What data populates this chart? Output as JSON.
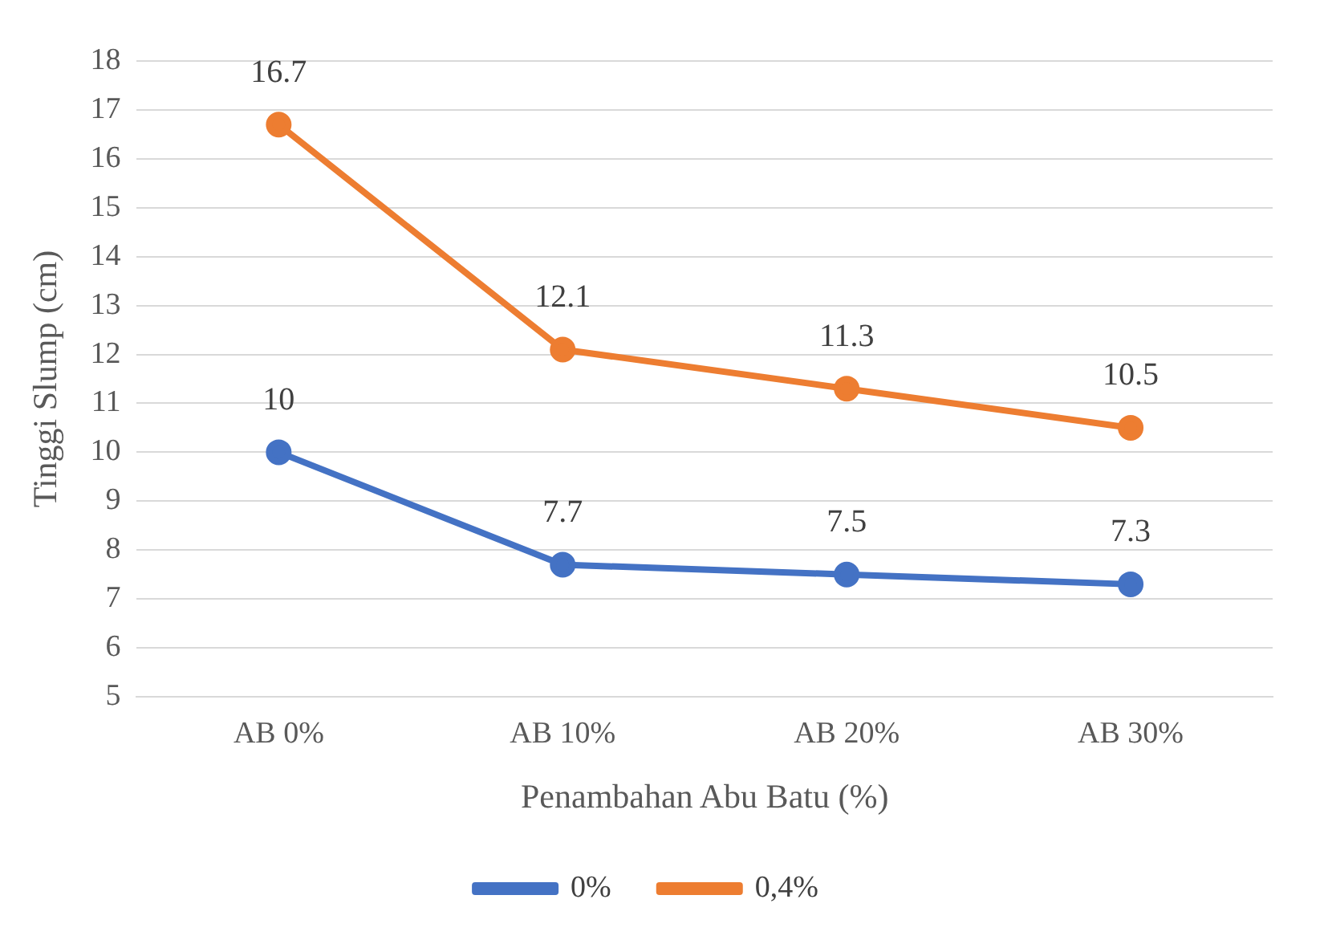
{
  "chart_data": {
    "type": "line",
    "xlabel": "Penambahan Abu Batu (%)",
    "ylabel": "Tinggi Slump (cm)",
    "categories": [
      "AB 0%",
      "AB 10%",
      "AB 20%",
      "AB 30%"
    ],
    "series": [
      {
        "name": "0%",
        "color": "#4472c4",
        "values": [
          10,
          7.7,
          7.5,
          7.3
        ]
      },
      {
        "name": "0,4%",
        "color": "#ed7d31",
        "values": [
          16.7,
          12.1,
          11.3,
          10.5
        ]
      }
    ],
    "ylim": [
      5,
      18
    ],
    "yticks": [
      5,
      6,
      7,
      8,
      9,
      10,
      11,
      12,
      13,
      14,
      15,
      16,
      17,
      18
    ],
    "grid": "y",
    "legend": "bottom",
    "marker": "circle",
    "line_style": "solid",
    "data_labels": true
  }
}
